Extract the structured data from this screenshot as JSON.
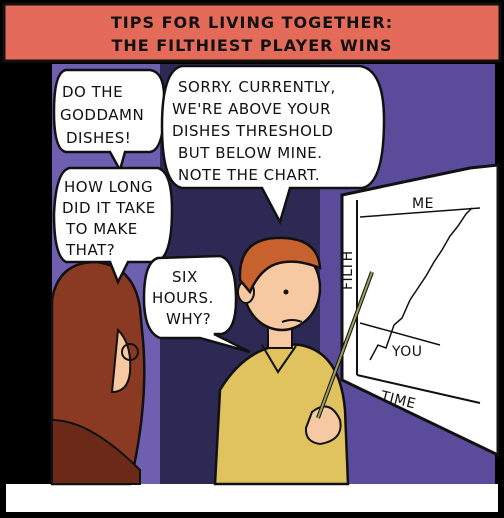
{
  "title": {
    "line1": "TIPS FOR LIVING TOGETHER:",
    "line2": "THE FILTHIEST PLAYER WINS"
  },
  "bubbles": {
    "dishes": [
      "DO THE",
      "GODDAMN",
      "DISHES!"
    ],
    "sorry": [
      "SORRY. CURRENTLY,",
      "WE'RE ABOVE YOUR",
      "DISHES THRESHOLD",
      "BUT BELOW MINE.",
      "NOTE THE CHART."
    ],
    "how_long": [
      "HOW LONG",
      "DID IT TAKE",
      "TO MAKE",
      "THAT?"
    ],
    "six_hours": [
      "SIX",
      "HOURS.",
      "WHY?"
    ]
  },
  "chart": {
    "label_me": "ME",
    "label_you": "YOU",
    "axis_y": "FILTH",
    "axis_x": "TIME"
  },
  "colors": {
    "title_bar": "#e46a5a",
    "wall": "#6f5fb0",
    "dark_wall": "#2c2a55",
    "shirt": "#e0c25e",
    "hair_man": "#c7612e",
    "hair_woman": "#8a3a22",
    "skin": "#f7c9a2"
  }
}
